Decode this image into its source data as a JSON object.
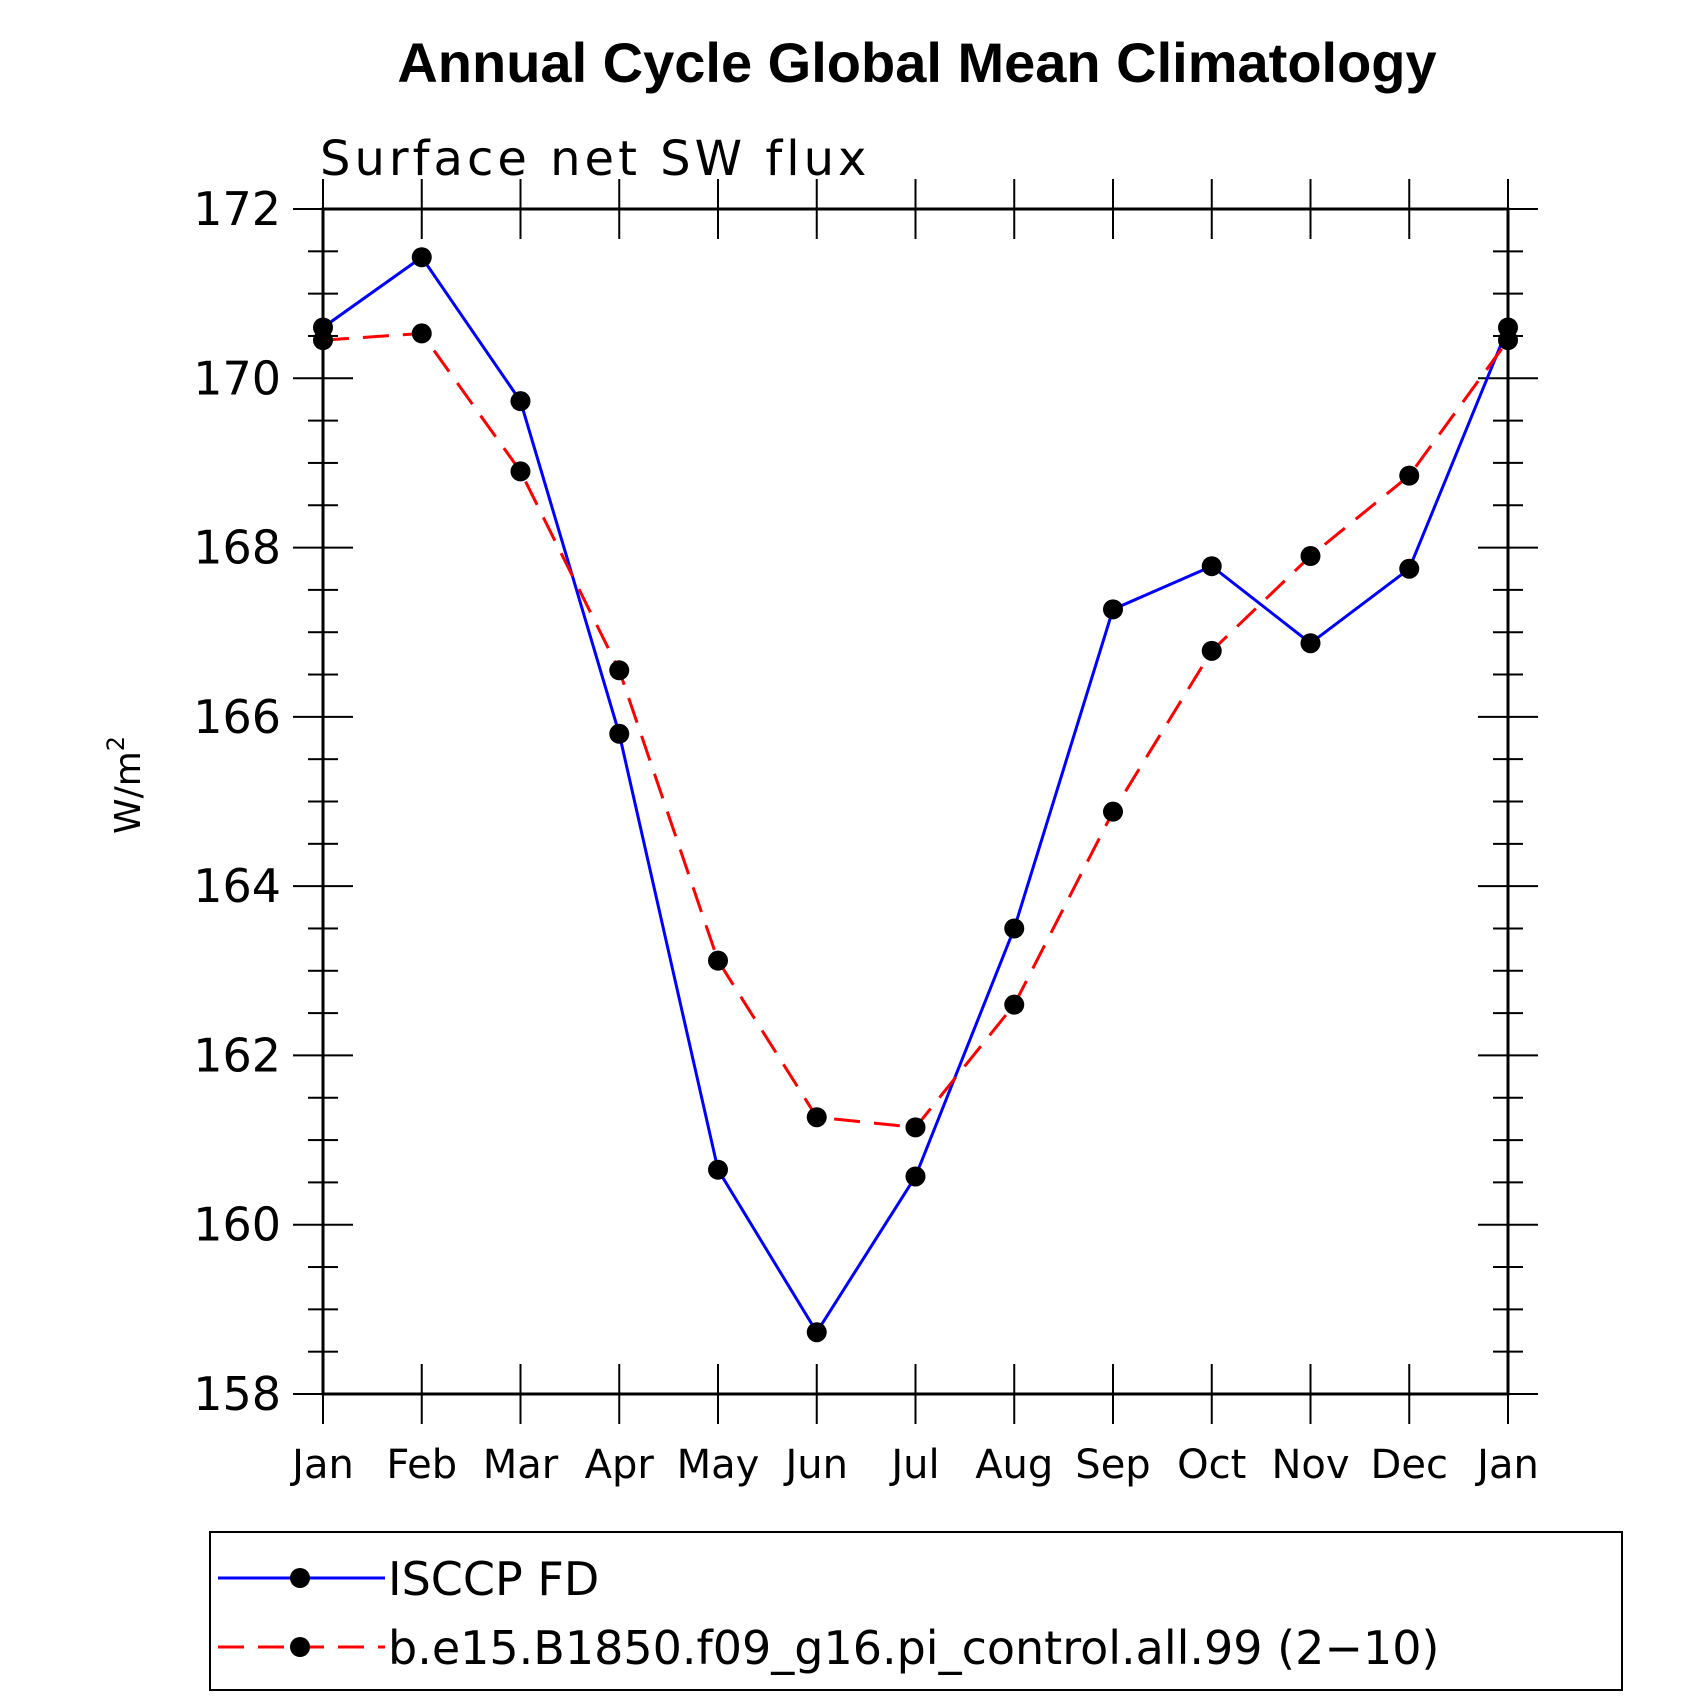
{
  "chart_data": {
    "type": "line",
    "title": "Annual Cycle Global Mean Climatology",
    "subtitle": "Surface net SW flux",
    "ylabel": "W/m",
    "ylabel_superscript": "2",
    "categories": [
      "Jan",
      "Feb",
      "Mar",
      "Apr",
      "May",
      "Jun",
      "Jul",
      "Aug",
      "Sep",
      "Oct",
      "Nov",
      "Dec",
      "Jan"
    ],
    "ylim": [
      158,
      172
    ],
    "yticks": [
      "158",
      "160",
      "162",
      "164",
      "166",
      "168",
      "170",
      "172"
    ],
    "series": [
      {
        "name": "ISCCP FD",
        "color": "#0000ff",
        "dash": "solid",
        "values": [
          170.6,
          171.43,
          169.73,
          165.8,
          160.65,
          158.73,
          160.57,
          163.5,
          167.27,
          167.78,
          166.87,
          167.75,
          170.6
        ]
      },
      {
        "name": "b.e15.B1850.f09_g16.pi_control.all.99 (2−10)",
        "color": "#ff0000",
        "dash": "dashed",
        "values": [
          170.45,
          170.53,
          168.9,
          166.55,
          163.12,
          161.27,
          161.15,
          162.6,
          164.88,
          166.78,
          167.9,
          168.85,
          170.45
        ]
      }
    ],
    "legend_position": "bottom",
    "grid": false
  }
}
